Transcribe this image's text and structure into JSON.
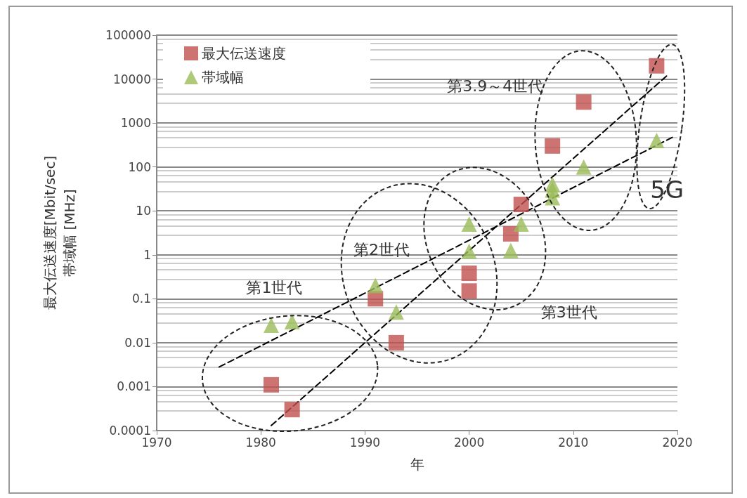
{
  "chart_data": {
    "type": "scatter",
    "xlabel": "年",
    "ylabel": "最大伝送速度[Mbit/sec]\n帯域幅 [MHz]",
    "xlim": [
      1970,
      2020
    ],
    "xticks": [
      1970,
      1980,
      1990,
      2000,
      2010,
      2020
    ],
    "ylim": [
      0.0001,
      100000
    ],
    "yticks": [
      0.0001,
      0.001,
      0.01,
      0.1,
      1,
      10,
      100,
      1000,
      10000,
      100000
    ],
    "log": "y",
    "grid": "y",
    "legend": "top left",
    "series": [
      {
        "name": "最大伝送速度",
        "marker": "square",
        "color": "#c0504d",
        "x": [
          1981,
          1983,
          1991,
          1993,
          2000,
          2000,
          2004,
          2005,
          2008,
          2011,
          2018
        ],
        "values": [
          0.0011,
          0.0003,
          0.1,
          0.01,
          0.38,
          0.15,
          3,
          14,
          300,
          3000,
          20000
        ]
      },
      {
        "name": "帯域幅",
        "marker": "triangle",
        "color": "#9bbb59",
        "x": [
          1981,
          1983,
          1991,
          1993,
          2000,
          2000,
          2004,
          2005,
          2008,
          2008,
          2008,
          2011,
          2018
        ],
        "values": [
          0.025,
          0.03,
          0.2,
          0.05,
          5,
          1.2,
          1.25,
          5,
          40,
          30,
          20,
          100,
          400
        ]
      },
      {
        "type": "line",
        "marker": "none",
        "line_style": "dashed",
        "color": "#000000",
        "x": [
          1981,
          2019
        ],
        "values": [
          0.00013,
          12000
        ]
      },
      {
        "type": "line",
        "marker": "none",
        "line_style": "dashed",
        "color": "#000000",
        "x": [
          1976,
          2019.5
        ],
        "values": [
          0.0028,
          470
        ]
      }
    ],
    "annotations": [
      "第1世代",
      "第2世代",
      "第3世代",
      "第3.9～4世代",
      "5G"
    ]
  }
}
